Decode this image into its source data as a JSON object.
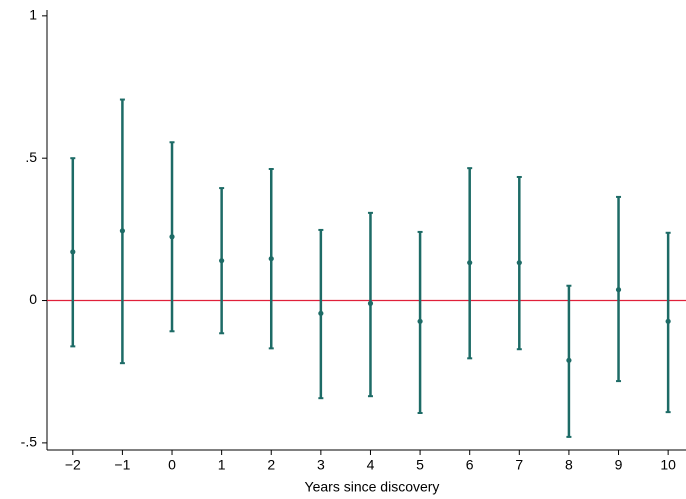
{
  "chart_data": {
    "type": "errorbar",
    "x_label": "Years since discovery",
    "x": [
      -2,
      -1,
      0,
      1,
      2,
      3,
      4,
      5,
      6,
      7,
      8,
      9,
      10
    ],
    "series": [
      {
        "color": "#1d6b66",
        "values": [
          0.171,
          0.245,
          0.224,
          0.14,
          0.147,
          -0.045,
          -0.01,
          -0.073,
          0.133,
          0.133,
          -0.21,
          0.038,
          -0.073
        ],
        "ci_low": [
          -0.161,
          -0.22,
          -0.108,
          -0.115,
          -0.168,
          -0.343,
          -0.336,
          -0.395,
          -0.203,
          -0.171,
          -0.479,
          -0.283,
          -0.392
        ],
        "ci_high": [
          0.5,
          0.706,
          0.556,
          0.395,
          0.462,
          0.248,
          0.308,
          0.241,
          0.465,
          0.434,
          0.052,
          0.364,
          0.238
        ]
      }
    ],
    "reference_line": 0,
    "reference_color": "#e0203a",
    "xlim": [
      -2.52,
      10.36
    ],
    "ylim": [
      -0.525,
      1.01
    ],
    "xticks": [
      {
        "value": -2,
        "label": "−2"
      },
      {
        "value": -1,
        "label": "−1"
      },
      0,
      1,
      2,
      3,
      4,
      5,
      6,
      7,
      8,
      9,
      10
    ],
    "yticks": [
      {
        "value": -0.5,
        "label": "-.5"
      },
      0,
      {
        "value": 0.5,
        "label": ".5"
      },
      1
    ]
  }
}
